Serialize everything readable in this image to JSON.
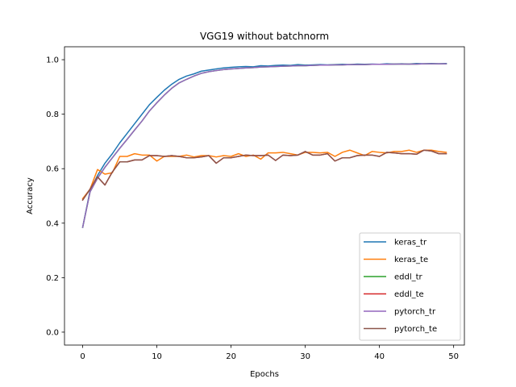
{
  "chart_data": {
    "type": "line",
    "title": "VGG19 without batchnorm",
    "xlabel": "Epochs",
    "ylabel": "Accuracy",
    "xlim": [
      -2.45,
      51.45
    ],
    "ylim": [
      -0.0475,
      1.0475
    ],
    "xticks": [
      0,
      10,
      20,
      30,
      40,
      50
    ],
    "yticks": [
      0.0,
      0.2,
      0.4,
      0.6,
      0.8,
      1.0
    ],
    "xtick_labels": [
      "0",
      "10",
      "20",
      "30",
      "40",
      "50"
    ],
    "ytick_labels": [
      "0.0",
      "0.2",
      "0.4",
      "0.6",
      "0.8",
      "1.0"
    ],
    "grid": false,
    "legend_position": "lower right",
    "x": [
      0,
      1,
      2,
      3,
      4,
      5,
      6,
      7,
      8,
      9,
      10,
      11,
      12,
      13,
      14,
      15,
      16,
      17,
      18,
      19,
      20,
      21,
      22,
      23,
      24,
      25,
      26,
      27,
      28,
      29,
      30,
      31,
      32,
      33,
      34,
      35,
      36,
      37,
      38,
      39,
      40,
      41,
      42,
      43,
      44,
      45,
      46,
      47,
      48,
      49
    ],
    "series": [
      {
        "name": "keras_tr",
        "color": "#1f77b4",
        "values": [
          0.385,
          0.52,
          0.575,
          0.62,
          0.655,
          0.695,
          0.73,
          0.765,
          0.8,
          0.835,
          0.862,
          0.888,
          0.91,
          0.928,
          0.94,
          0.948,
          0.958,
          0.962,
          0.966,
          0.97,
          0.972,
          0.974,
          0.975,
          0.974,
          0.978,
          0.977,
          0.979,
          0.98,
          0.979,
          0.982,
          0.98,
          0.981,
          0.982,
          0.981,
          0.982,
          0.983,
          0.982,
          0.984,
          0.983,
          0.984,
          0.983,
          0.985,
          0.984,
          0.985,
          0.984,
          0.986,
          0.985,
          0.986,
          0.985,
          0.986
        ]
      },
      {
        "name": "keras_te",
        "color": "#ff7f0e",
        "values": [
          0.49,
          0.525,
          0.597,
          0.58,
          0.585,
          0.645,
          0.645,
          0.655,
          0.65,
          0.65,
          0.628,
          0.645,
          0.645,
          0.645,
          0.65,
          0.643,
          0.648,
          0.648,
          0.643,
          0.648,
          0.645,
          0.655,
          0.645,
          0.65,
          0.635,
          0.658,
          0.658,
          0.66,
          0.655,
          0.65,
          0.66,
          0.66,
          0.658,
          0.66,
          0.645,
          0.66,
          0.668,
          0.658,
          0.648,
          0.663,
          0.66,
          0.658,
          0.663,
          0.663,
          0.668,
          0.66,
          0.668,
          0.668,
          0.663,
          0.66
        ]
      },
      {
        "name": "eddl_tr",
        "color": "#2ca02c",
        "values": [
          0.385,
          0.515,
          0.565,
          0.605,
          0.64,
          0.675,
          0.708,
          0.742,
          0.775,
          0.812,
          0.842,
          0.87,
          0.895,
          0.915,
          0.928,
          0.94,
          0.95,
          0.956,
          0.96,
          0.964,
          0.966,
          0.968,
          0.97,
          0.971,
          0.973,
          0.974,
          0.975,
          0.976,
          0.977,
          0.978,
          0.978,
          0.979,
          0.98,
          0.98,
          0.981,
          0.981,
          0.982,
          0.982,
          0.982,
          0.983,
          0.983,
          0.983,
          0.984,
          0.984,
          0.984,
          0.984,
          0.985,
          0.985,
          0.985,
          0.985
        ]
      },
      {
        "name": "eddl_te",
        "color": "#d62728",
        "values": [
          0.485,
          0.525,
          0.57,
          0.54,
          0.588,
          0.625,
          0.625,
          0.632,
          0.632,
          0.648,
          0.648,
          0.645,
          0.648,
          0.645,
          0.64,
          0.64,
          0.643,
          0.648,
          0.62,
          0.64,
          0.64,
          0.645,
          0.65,
          0.648,
          0.648,
          0.65,
          0.63,
          0.65,
          0.648,
          0.65,
          0.663,
          0.65,
          0.65,
          0.655,
          0.628,
          0.64,
          0.64,
          0.648,
          0.65,
          0.65,
          0.645,
          0.66,
          0.658,
          0.655,
          0.655,
          0.653,
          0.668,
          0.665,
          0.655,
          0.655
        ]
      },
      {
        "name": "pytorch_tr",
        "color": "#9467bd",
        "values": [
          0.385,
          0.515,
          0.565,
          0.605,
          0.64,
          0.675,
          0.708,
          0.742,
          0.775,
          0.812,
          0.842,
          0.87,
          0.895,
          0.915,
          0.928,
          0.94,
          0.95,
          0.956,
          0.96,
          0.964,
          0.966,
          0.968,
          0.97,
          0.971,
          0.973,
          0.974,
          0.975,
          0.976,
          0.977,
          0.978,
          0.978,
          0.979,
          0.98,
          0.98,
          0.981,
          0.981,
          0.982,
          0.982,
          0.982,
          0.983,
          0.983,
          0.983,
          0.984,
          0.984,
          0.984,
          0.984,
          0.985,
          0.985,
          0.985,
          0.985
        ]
      },
      {
        "name": "pytorch_te",
        "color": "#8c564b",
        "values": [
          0.485,
          0.525,
          0.57,
          0.54,
          0.588,
          0.625,
          0.625,
          0.632,
          0.632,
          0.648,
          0.648,
          0.645,
          0.648,
          0.645,
          0.64,
          0.64,
          0.643,
          0.648,
          0.62,
          0.64,
          0.64,
          0.645,
          0.65,
          0.648,
          0.648,
          0.65,
          0.63,
          0.65,
          0.648,
          0.65,
          0.663,
          0.65,
          0.65,
          0.655,
          0.628,
          0.64,
          0.64,
          0.648,
          0.65,
          0.65,
          0.645,
          0.66,
          0.658,
          0.655,
          0.655,
          0.653,
          0.668,
          0.665,
          0.655,
          0.655
        ]
      }
    ]
  }
}
